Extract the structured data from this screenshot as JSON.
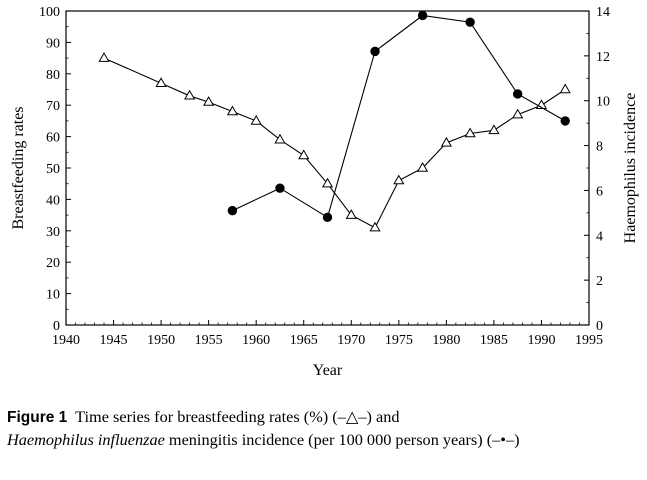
{
  "chart_data": {
    "type": "line",
    "xlabel": "Year",
    "ylabel_left": "Breastfeeding rates",
    "ylabel_right": "Haemophilus incidence",
    "xlim": [
      1940,
      1995
    ],
    "ylim_left": [
      0,
      100
    ],
    "ylim_right": [
      0,
      14
    ],
    "x_ticks": [
      1940,
      1945,
      1950,
      1955,
      1960,
      1965,
      1970,
      1975,
      1980,
      1985,
      1990,
      1995
    ],
    "y_ticks_left": [
      0,
      10,
      20,
      30,
      40,
      50,
      60,
      70,
      80,
      90,
      100
    ],
    "y_ticks_right": [
      0,
      2,
      4,
      6,
      8,
      10,
      12,
      14
    ],
    "grid": false,
    "series": [
      {
        "marker": "open-triangle",
        "axis": "left",
        "x": [
          1944,
          1950,
          1953,
          1955,
          1957.5,
          1960,
          1962.5,
          1965,
          1967.5,
          1970,
          1972.5,
          1975,
          1977.5,
          1980,
          1982.5,
          1985,
          1987.5,
          1990,
          1992.5
        ],
        "y": [
          85,
          77,
          73,
          71,
          68,
          65,
          59,
          54,
          45,
          35,
          31,
          46,
          50,
          58,
          61,
          62,
          67,
          70,
          75
        ]
      },
      {
        "marker": "filled-circle",
        "axis": "right",
        "x": [
          1957.5,
          1962.5,
          1967.5,
          1972.5,
          1977.5,
          1982.5,
          1987.5,
          1992.5
        ],
        "y": [
          5.1,
          6.1,
          4.8,
          12.2,
          13.8,
          13.5,
          10.3,
          9.1
        ]
      }
    ]
  },
  "caption": {
    "label": "Figure 1",
    "text_part1": "Time series for breastfeeding rates (%) (–△–) and",
    "italic_part": "Haemophilus influenzae",
    "text_part2": "meningitis incidence (per 100 000 person years) (–•–)"
  }
}
